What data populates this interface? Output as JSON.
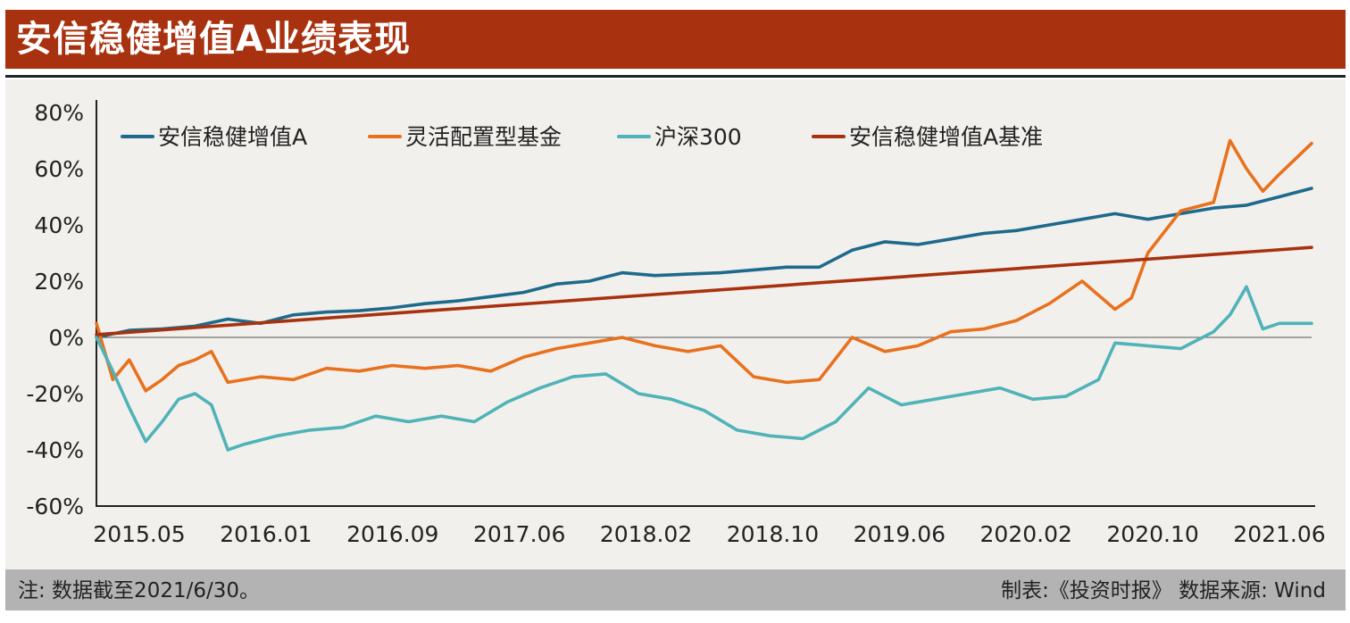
{
  "header": {
    "title": "安信稳健增值A业绩表现"
  },
  "footer": {
    "note": "注: 数据截至2021/6/30。",
    "source": "制表:《投资时报》 数据来源: Wind"
  },
  "chart_data": {
    "type": "line",
    "title": "安信稳健增值A业绩表现",
    "x_ticks": [
      "2015.05",
      "2016.01",
      "2016.09",
      "2017.06",
      "2018.02",
      "2018.10",
      "2019.06",
      "2020.02",
      "2020.10",
      "2021.06"
    ],
    "y_ticks": [
      "80%",
      "60%",
      "40%",
      "20%",
      "0%",
      "-20%",
      "-40%",
      "-60%"
    ],
    "ylim": [
      -60,
      80
    ],
    "y_unit": "%",
    "x_range": [
      "2015-05",
      "2021-06-30"
    ],
    "grid": false,
    "zero_line": true,
    "legend_position": "top-left",
    "series": [
      {
        "name": "安信稳健增值A",
        "color": "#1e6a8c",
        "x": [
          "2015-05",
          "2015-07",
          "2015-09",
          "2015-11",
          "2016-01",
          "2016-03",
          "2016-05",
          "2016-07",
          "2016-09",
          "2016-11",
          "2017-01",
          "2017-03",
          "2017-05",
          "2017-07",
          "2017-09",
          "2017-11",
          "2018-01",
          "2018-03",
          "2018-05",
          "2018-07",
          "2018-09",
          "2018-11",
          "2019-01",
          "2019-03",
          "2019-05",
          "2019-07",
          "2019-09",
          "2019-11",
          "2020-01",
          "2020-03",
          "2020-05",
          "2020-07",
          "2020-09",
          "2020-11",
          "2021-01",
          "2021-03",
          "2021-05",
          "2021-06-30"
        ],
        "values": [
          0,
          2.5,
          3,
          4,
          6.5,
          5,
          8,
          9,
          9.5,
          10.5,
          12,
          13,
          14.5,
          16,
          19,
          20,
          23,
          22,
          22.5,
          23,
          24,
          25,
          25,
          31,
          34,
          33,
          35,
          37,
          38,
          40,
          42,
          44,
          42,
          44,
          46,
          47,
          50,
          53
        ]
      },
      {
        "name": "灵活配置型基金",
        "color": "#e8711e",
        "x": [
          "2015-05",
          "2015-06",
          "2015-07",
          "2015-08",
          "2015-09",
          "2015-10",
          "2015-11",
          "2015-12",
          "2016-01",
          "2016-03",
          "2016-05",
          "2016-07",
          "2016-09",
          "2016-11",
          "2017-01",
          "2017-03",
          "2017-05",
          "2017-07",
          "2017-09",
          "2017-11",
          "2018-01",
          "2018-03",
          "2018-05",
          "2018-07",
          "2018-09",
          "2018-11",
          "2019-01",
          "2019-03",
          "2019-05",
          "2019-07",
          "2019-09",
          "2019-11",
          "2020-01",
          "2020-03",
          "2020-05",
          "2020-07",
          "2020-08",
          "2020-09",
          "2020-11",
          "2021-01",
          "2021-02",
          "2021-03",
          "2021-04",
          "2021-05",
          "2021-06-30"
        ],
        "values": [
          5,
          -15,
          -8,
          -19,
          -15,
          -10,
          -8,
          -5,
          -16,
          -14,
          -15,
          -11,
          -12,
          -10,
          -11,
          -10,
          -12,
          -7,
          -4,
          -2,
          0,
          -3,
          -5,
          -3,
          -14,
          -16,
          -15,
          0,
          -5,
          -3,
          2,
          3,
          6,
          12,
          20,
          10,
          14,
          30,
          45,
          48,
          70,
          60,
          52,
          58,
          69
        ]
      },
      {
        "name": "沪深300",
        "color": "#4fb3b8",
        "x": [
          "2015-05",
          "2015-06",
          "2015-07",
          "2015-08",
          "2015-09",
          "2015-10",
          "2015-11",
          "2015-12",
          "2016-01",
          "2016-02",
          "2016-04",
          "2016-06",
          "2016-08",
          "2016-10",
          "2016-12",
          "2017-02",
          "2017-04",
          "2017-06",
          "2017-08",
          "2017-10",
          "2017-12",
          "2018-02",
          "2018-04",
          "2018-06",
          "2018-08",
          "2018-10",
          "2018-12",
          "2019-02",
          "2019-04",
          "2019-06",
          "2019-08",
          "2019-10",
          "2019-12",
          "2020-02",
          "2020-04",
          "2020-06",
          "2020-07",
          "2020-09",
          "2020-11",
          "2021-01",
          "2021-02",
          "2021-03",
          "2021-04",
          "2021-05",
          "2021-06-30"
        ],
        "values": [
          0,
          -12,
          -25,
          -37,
          -30,
          -22,
          -20,
          -24,
          -40,
          -38,
          -35,
          -33,
          -32,
          -28,
          -30,
          -28,
          -30,
          -23,
          -18,
          -14,
          -13,
          -20,
          -22,
          -26,
          -33,
          -35,
          -36,
          -30,
          -18,
          -24,
          -22,
          -20,
          -18,
          -22,
          -21,
          -15,
          -2,
          -3,
          -4,
          2,
          8,
          18,
          3,
          5,
          5
        ]
      },
      {
        "name": "安信稳健增值A基准",
        "color": "#a8320f",
        "x": [
          "2015-05",
          "2021-06-30"
        ],
        "values": [
          1,
          32
        ]
      }
    ]
  }
}
